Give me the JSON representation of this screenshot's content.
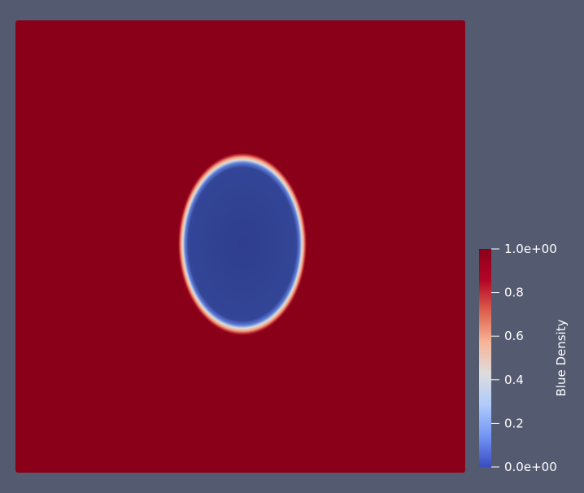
{
  "colors": {
    "background": "#545a70",
    "field_high": "#8b0019",
    "field_low": "#2f3e8f",
    "colormap": [
      "#3b4cc0",
      "#7396f5",
      "#b0cbfc",
      "#dddcdc",
      "#f7b497",
      "#dd604d",
      "#b40426",
      "#8b0019"
    ]
  },
  "colorbar": {
    "title": "Blue Density",
    "range": [
      0.0,
      1.0
    ],
    "ticks": [
      {
        "value": 1.0,
        "label": "1.0e+00"
      },
      {
        "value": 0.8,
        "label": "0.8"
      },
      {
        "value": 0.6,
        "label": "0.6"
      },
      {
        "value": 0.4,
        "label": "0.4"
      },
      {
        "value": 0.2,
        "label": "0.2"
      },
      {
        "value": 0.0,
        "label": "0.0e+00"
      }
    ]
  },
  "field": {
    "outside_value": 1.0,
    "inside_value": 0.0
  }
}
